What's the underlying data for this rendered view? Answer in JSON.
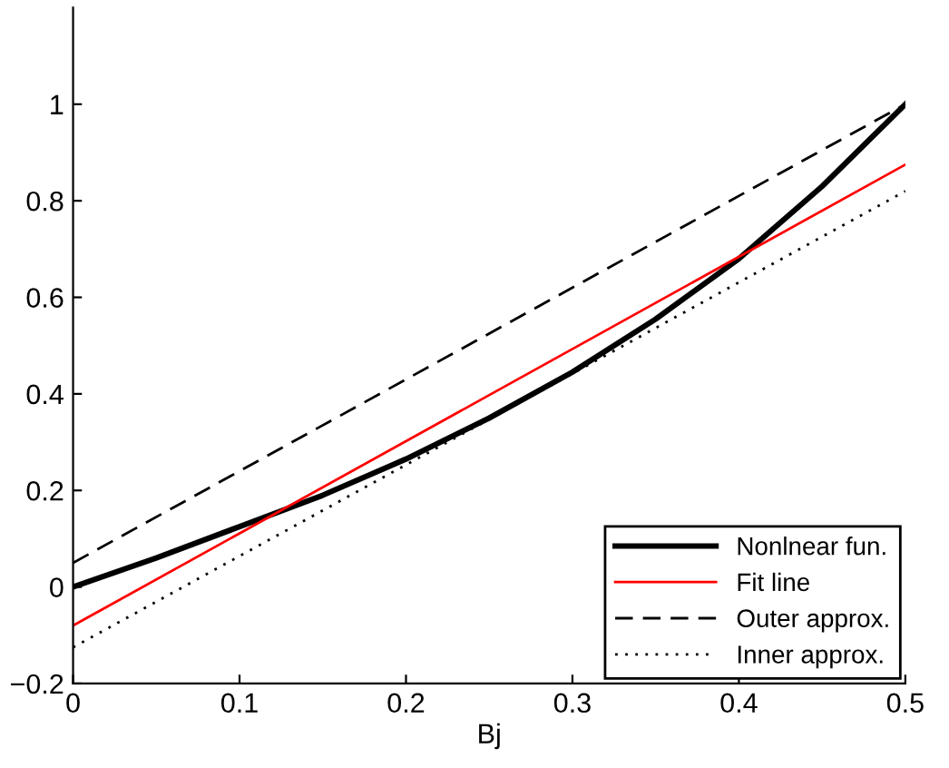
{
  "chart_data": {
    "type": "line",
    "xlabel": "Bj",
    "xlim": [
      0,
      0.5
    ],
    "ylim": [
      -0.2,
      1.2
    ],
    "xticks": [
      0,
      0.1,
      0.2,
      0.3,
      0.4,
      0.5
    ],
    "yticks": [
      -0.2,
      0,
      0.2,
      0.4,
      0.6,
      0.8,
      1
    ],
    "grid": false,
    "legend": "bottom right",
    "series": [
      {
        "name": "Nonlnear fun.",
        "color": "#000000",
        "line_style": "solid",
        "x": [
          0,
          0.05,
          0.1,
          0.15,
          0.2,
          0.25,
          0.3,
          0.35,
          0.4,
          0.45,
          0.5
        ],
        "values": [
          0,
          0.06,
          0.125,
          0.19,
          0.265,
          0.35,
          0.445,
          0.555,
          0.68,
          0.83,
          1.0
        ]
      },
      {
        "name": "Fit line",
        "color": "#ff0000",
        "line_style": "solid",
        "x": [
          0,
          0.5
        ],
        "values": [
          -0.08,
          0.875
        ]
      },
      {
        "name": "Outer approx.",
        "color": "#000000",
        "line_style": "dashed",
        "x": [
          0,
          0.5
        ],
        "values": [
          0.05,
          1.0
        ]
      },
      {
        "name": "Inner approx.",
        "color": "#000000",
        "line_style": "dotted",
        "x": [
          0,
          0.5
        ],
        "values": [
          -0.125,
          0.82
        ]
      }
    ]
  }
}
